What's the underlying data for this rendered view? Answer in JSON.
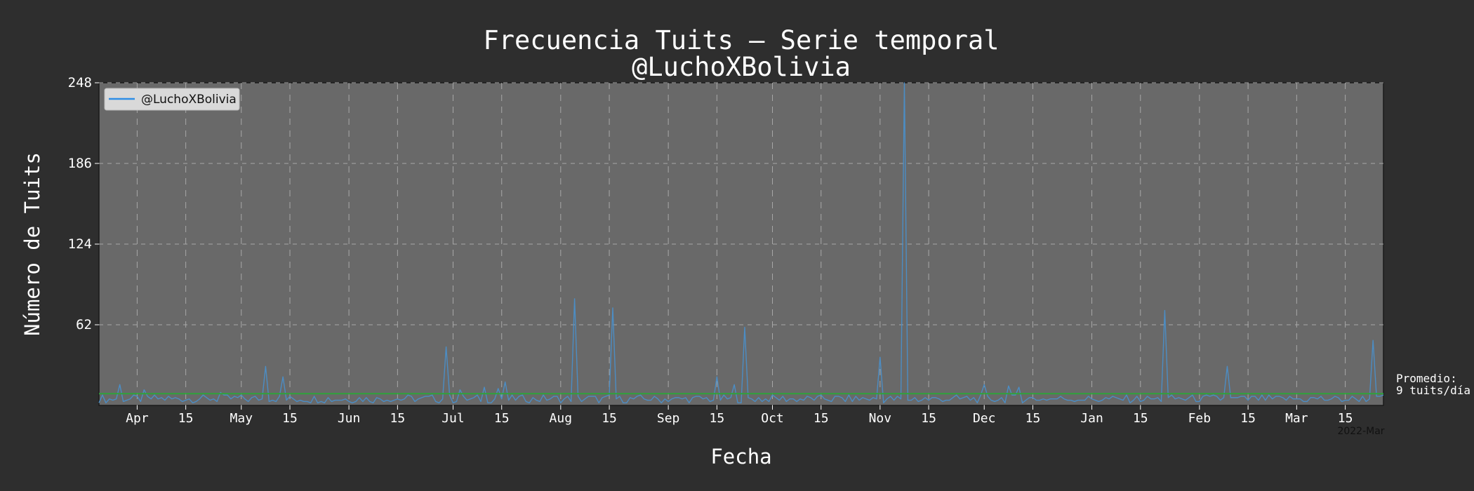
{
  "chart_data": {
    "type": "line",
    "title_line1": "Frecuencia Tuits – Serie temporal",
    "title_line2": "@LuchoXBolivia",
    "xlabel": "Fecha",
    "ylabel": "Número de Tuits",
    "ylim": [
      0,
      248
    ],
    "yticks": [
      248,
      186,
      124,
      62
    ],
    "xlim": [
      "2021-03-21",
      "2022-03-26"
    ],
    "xticks": [
      {
        "date": "2021-04-01",
        "label": "Apr"
      },
      {
        "date": "2021-04-15",
        "label": "15"
      },
      {
        "date": "2021-05-01",
        "label": "May"
      },
      {
        "date": "2021-05-15",
        "label": "15"
      },
      {
        "date": "2021-06-01",
        "label": "Jun"
      },
      {
        "date": "2021-06-15",
        "label": "15"
      },
      {
        "date": "2021-07-01",
        "label": "Jul"
      },
      {
        "date": "2021-07-15",
        "label": "15"
      },
      {
        "date": "2021-08-01",
        "label": "Aug"
      },
      {
        "date": "2021-08-15",
        "label": "15"
      },
      {
        "date": "2021-09-01",
        "label": "Sep"
      },
      {
        "date": "2021-09-15",
        "label": "15"
      },
      {
        "date": "2021-10-01",
        "label": "Oct"
      },
      {
        "date": "2021-10-15",
        "label": "15"
      },
      {
        "date": "2021-11-01",
        "label": "Nov"
      },
      {
        "date": "2021-11-15",
        "label": "15"
      },
      {
        "date": "2021-12-01",
        "label": "Dec"
      },
      {
        "date": "2021-12-15",
        "label": "15"
      },
      {
        "date": "2022-01-01",
        "label": "Jan"
      },
      {
        "date": "2022-01-15",
        "label": "15"
      },
      {
        "date": "2022-02-01",
        "label": "Feb"
      },
      {
        "date": "2022-02-15",
        "label": "15"
      },
      {
        "date": "2022-03-01",
        "label": "Mar"
      },
      {
        "date": "2022-03-15",
        "label": "15"
      }
    ],
    "x_offset_label": "2022-Mar",
    "grid": true,
    "legend": {
      "entries": [
        "@LuchoXBolivia"
      ],
      "placement": "top-left"
    },
    "mean_line": {
      "value": 9,
      "label_line1": "Promedio:",
      "label_line2": "9 tuits/día"
    },
    "series": [
      {
        "name": "@LuchoXBolivia",
        "baseline": 5,
        "peaks": [
          {
            "date": "2021-03-27",
            "value": 16
          },
          {
            "date": "2021-04-03",
            "value": 12
          },
          {
            "date": "2021-04-25",
            "value": 10
          },
          {
            "date": "2021-05-08",
            "value": 30
          },
          {
            "date": "2021-05-13",
            "value": 22
          },
          {
            "date": "2021-06-29",
            "value": 45
          },
          {
            "date": "2021-07-03",
            "value": 12
          },
          {
            "date": "2021-07-10",
            "value": 14
          },
          {
            "date": "2021-07-14",
            "value": 13
          },
          {
            "date": "2021-07-16",
            "value": 18
          },
          {
            "date": "2021-08-05",
            "value": 82
          },
          {
            "date": "2021-08-16",
            "value": 75
          },
          {
            "date": "2021-09-15",
            "value": 22
          },
          {
            "date": "2021-09-20",
            "value": 16
          },
          {
            "date": "2021-09-23",
            "value": 60
          },
          {
            "date": "2021-11-01",
            "value": 37
          },
          {
            "date": "2021-11-08",
            "value": 248
          },
          {
            "date": "2021-12-01",
            "value": 16
          },
          {
            "date": "2021-12-08",
            "value": 15
          },
          {
            "date": "2021-12-11",
            "value": 14
          },
          {
            "date": "2022-01-22",
            "value": 73
          },
          {
            "date": "2022-02-09",
            "value": 30
          },
          {
            "date": "2022-03-23",
            "value": 50
          }
        ]
      }
    ]
  },
  "colors": {
    "background": "#2e2e2e",
    "plot_bg": "#696969",
    "line": "#4c8dc4",
    "mean": "#2fa23a",
    "grid": "#a8a8a8",
    "text": "#ffffff",
    "legend_line": "#2e8ee6"
  }
}
